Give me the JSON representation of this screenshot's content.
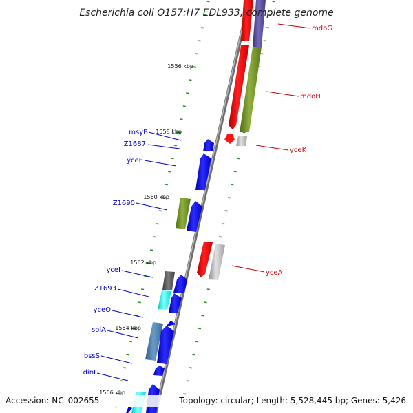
{
  "title": "Escherichia coli O157:H7 EDL933, complete genome",
  "footer": {
    "accession": "Accession: NC_002655",
    "summary": "Topology: circular; Length: 5,528,445 bp; Genes: 5,426"
  },
  "scale_labels": [
    "1556 kbp",
    "1558 kbp",
    "1560 kbp",
    "1562 kbp",
    "1564 kbp",
    "1566 kbp"
  ],
  "gene_labels": {
    "reverse_strand": [
      "msyB",
      "Z1687",
      "yceE",
      "Z1690",
      "yceI",
      "Z1693",
      "yceO",
      "solA",
      "bssS",
      "dinI"
    ],
    "forward_strand": [
      "mdoG",
      "mdoH",
      "yceK",
      "yceA"
    ]
  },
  "colors": {
    "backbone": "#8a8a8a",
    "tick": "#2e8b2e",
    "reverse_label": "#0000cc",
    "forward_label": "#cc0000",
    "gene_blue": "#0000ee",
    "gene_red": "#ff0000",
    "gene_olive": "#6b8e23",
    "gene_grey": "#b4b4b4",
    "gene_darkgrey": "#555555",
    "gene_cyan": "#00ffff",
    "gene_steel": "#4682b4",
    "gene_slate": "#5a4fa0"
  }
}
